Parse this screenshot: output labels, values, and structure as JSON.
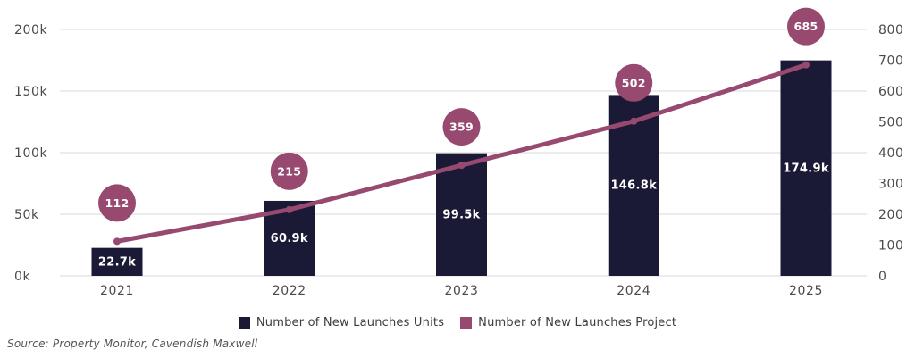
{
  "chart_data": {
    "type": "bar",
    "subtype": "combo-bar-line-dual-axis",
    "title": "",
    "categories": [
      "2021",
      "2022",
      "2023",
      "2024",
      "2025"
    ],
    "series": [
      {
        "name": "Number of New Launches Units",
        "render": "bar",
        "axis": "left",
        "values": [
          22700,
          60900,
          99500,
          146800,
          174900
        ],
        "labels": [
          "22.7k",
          "60.9k",
          "99.5k",
          "146.8k",
          "174.9k"
        ],
        "color": "#1A1A36"
      },
      {
        "name": "Number of New Launches Project",
        "render": "line",
        "axis": "right",
        "values": [
          112,
          215,
          359,
          502,
          685
        ],
        "labels": [
          "112",
          "215",
          "359",
          "502",
          "685"
        ],
        "color": "#97496F"
      }
    ],
    "left_axis": {
      "ticks": [
        "0k",
        "50k",
        "100k",
        "150k",
        "200k"
      ],
      "min": 0,
      "max": 200000
    },
    "right_axis": {
      "ticks": [
        "0",
        "100",
        "200",
        "300",
        "400",
        "500",
        "600",
        "700",
        "800"
      ],
      "min": 0,
      "max": 800
    },
    "grid": "horizontal",
    "legend_position": "bottom"
  },
  "legend": [
    {
      "label": "Number of New Launches Units",
      "color": "#1A1A36"
    },
    {
      "label": "Number of New Launches Project",
      "color": "#97496F"
    }
  ],
  "source": "Source: Property Monitor, Cavendish Maxwell",
  "colors": {
    "background": "#FFFFFF",
    "grid": "#DADADA",
    "axis_text": "#4A4A4A",
    "bar": "#1A1A36",
    "line": "#97496F",
    "value_text": "#FFFFFF",
    "legend_text": "#3D3D3D",
    "source_text": "#555555"
  }
}
